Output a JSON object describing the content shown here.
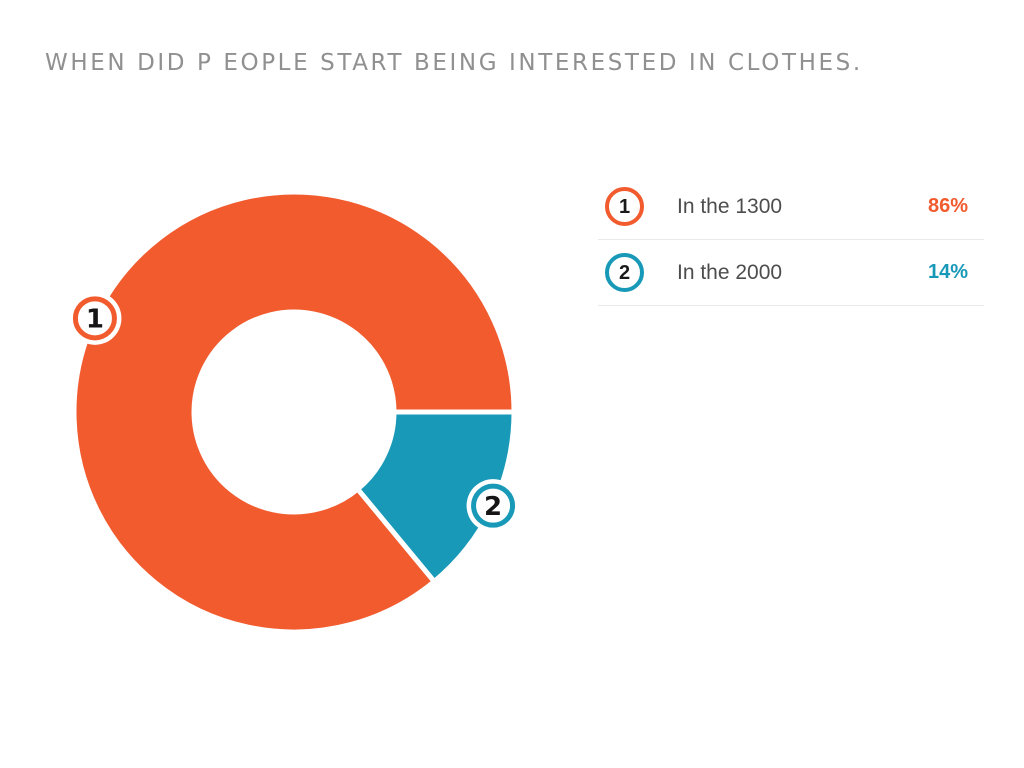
{
  "title": {
    "text": "WHEN DID P EOPLE START BEING INTERESTED IN CLOTHES.",
    "color": "#909090"
  },
  "chart_data": {
    "type": "pie",
    "variant": "donut",
    "title": "WHEN DID P EOPLE START BEING INTERESTED IN CLOTHES.",
    "categories": [
      "In the 1300",
      "In the 2000"
    ],
    "values": [
      86,
      14
    ],
    "unit": "%",
    "colors": [
      "#F15B2E",
      "#1899B8"
    ],
    "marker_labels": [
      "1",
      "2"
    ],
    "start_angle_deg": 0,
    "direction": "counterclockwise",
    "outer_radius_px": 220,
    "inner_radius_px": 100,
    "slice_gap_color": "#ffffff",
    "legend_position": "right",
    "grid": false
  },
  "legend": {
    "items": [
      {
        "marker": "1",
        "label": "In the 1300",
        "value": "86%",
        "color": "#F15B2E"
      },
      {
        "marker": "2",
        "label": "In the 2000",
        "value": "14%",
        "color": "#1899B8"
      }
    ],
    "label_color": "#4D4D4D",
    "divider_color": "#E9E9E9",
    "marker_number_color": "#1a1a1a"
  }
}
